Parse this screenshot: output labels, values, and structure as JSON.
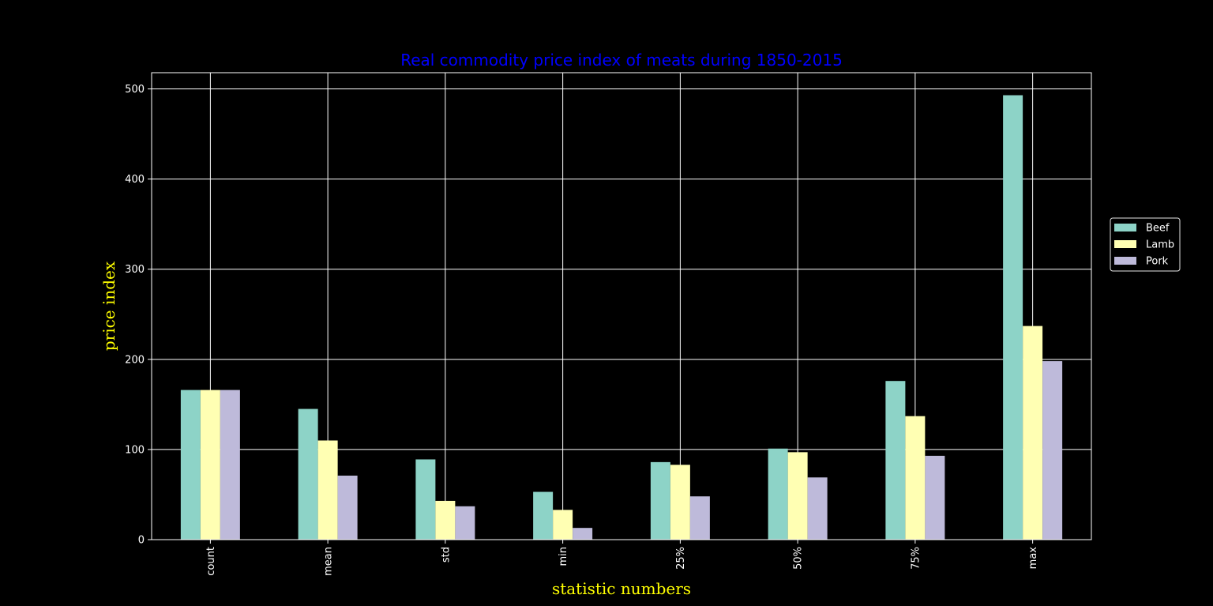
{
  "chart_data": {
    "type": "bar",
    "title": "Real commodity price index of meats during 1850-2015",
    "xlabel": "statistic numbers",
    "ylabel": "price index",
    "categories": [
      "count",
      "mean",
      "std",
      "min",
      "25%",
      "50%",
      "75%",
      "max"
    ],
    "series": [
      {
        "name": "Beef",
        "color": "#8dd3c7",
        "values": [
          166,
          145,
          89,
          53,
          86,
          101,
          176,
          493
        ]
      },
      {
        "name": "Lamb",
        "color": "#ffffb3",
        "values": [
          166,
          110,
          43,
          33,
          83,
          97,
          137,
          237
        ]
      },
      {
        "name": "Pork",
        "color": "#bebada",
        "values": [
          166,
          71,
          37,
          13,
          48,
          69,
          93,
          198
        ]
      }
    ],
    "ylim": [
      0,
      518
    ],
    "yticks": [
      0,
      100,
      200,
      300,
      400,
      500
    ],
    "grid": true,
    "legend_position": "center-right outside plot",
    "colors": {
      "background": "#000000",
      "title": "#0000ff",
      "axis_labels": "#ffff00",
      "ticks_and_grid": "#ffffff"
    }
  }
}
